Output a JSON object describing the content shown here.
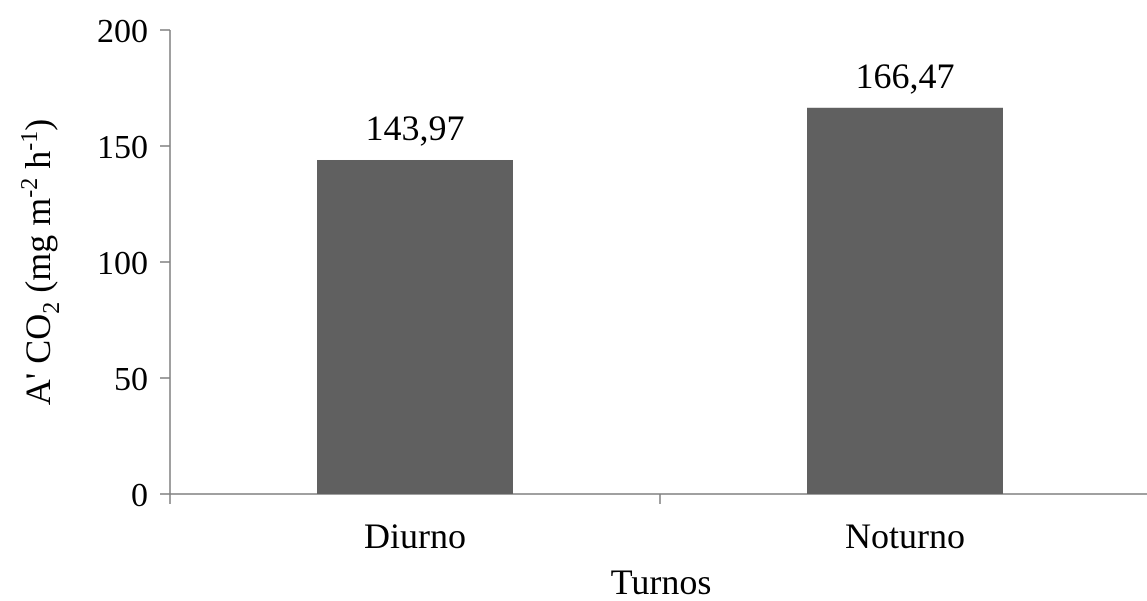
{
  "chart_data": {
    "type": "bar",
    "categories": [
      "Diurno",
      "Noturno"
    ],
    "values": [
      143.97,
      166.47
    ],
    "data_labels": [
      "143,97",
      "166,47"
    ],
    "xlabel": "Turnos",
    "ylabel": {
      "prefix": "A' CO",
      "sub": "2",
      "mid1": " (mg m",
      "sup1": "-2",
      "mid2": " h",
      "sup2": "-1",
      "suffix": ")"
    },
    "ylim": [
      0,
      200
    ],
    "yticks": [
      0,
      50,
      100,
      150,
      200
    ],
    "ytick_labels": [
      "0",
      "50",
      "100",
      "150",
      "200"
    ],
    "bar_color": "#606060",
    "grid": false,
    "legend": "none"
  }
}
